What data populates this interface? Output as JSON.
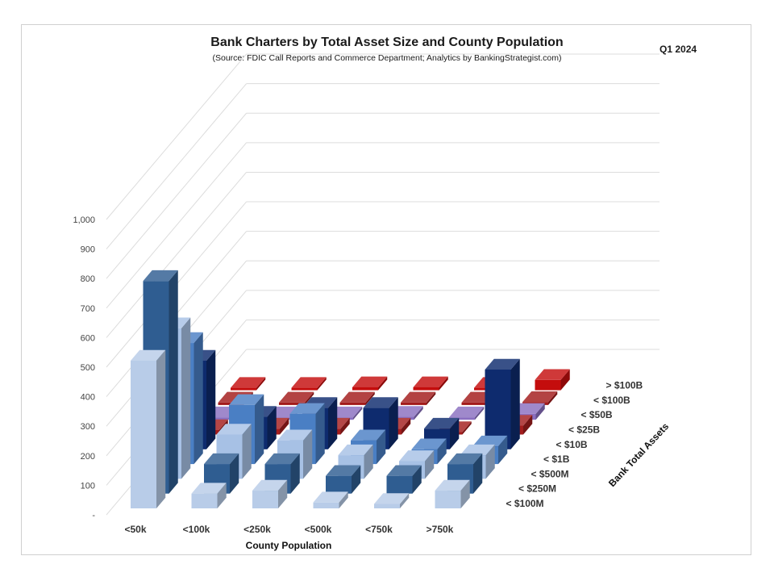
{
  "title": "Bank Charters by Total Asset Size and County Population",
  "subtitle": "(Source: FDIC Call Reports and Commerce Department; Analytics by BankingStrategist.com)",
  "period": "Q1  2024",
  "chart_data": {
    "type": "bar",
    "variant": "3d-column",
    "title": "Bank Charters by Total Asset Size and County Population",
    "xlabel": "County Population",
    "zlabel": "Bank Total Assets",
    "ylabel": "",
    "ylim": [
      0,
      1000
    ],
    "yticks": [
      "-",
      "100",
      "200",
      "300",
      "400",
      "500",
      "600",
      "700",
      "800",
      "900",
      "1,000"
    ],
    "grid": true,
    "categories": [
      "<50k",
      "<100k",
      "<250k",
      "<500k",
      "<750k",
      ">750k"
    ],
    "series": [
      {
        "name": "< $100M",
        "color": "#b8cce8",
        "values": [
          500,
          50,
          60,
          20,
          15,
          60
        ]
      },
      {
        "name": "< $250M",
        "color": "#2f5d91",
        "values": [
          720,
          100,
          100,
          60,
          60,
          100
        ]
      },
      {
        "name": "< $500M",
        "color": "#a7c1e5",
        "values": [
          510,
          150,
          130,
          80,
          60,
          80
        ]
      },
      {
        "name": "< $1B",
        "color": "#4a7fc4",
        "values": [
          410,
          200,
          170,
          80,
          50,
          60
        ]
      },
      {
        "name": "< $10B",
        "color": "#0e2b6e",
        "values": [
          300,
          110,
          140,
          140,
          70,
          270
        ]
      },
      {
        "name": "< $25B",
        "color": "#a31d1d",
        "values": [
          15,
          20,
          20,
          20,
          5,
          30
        ]
      },
      {
        "name": "< $50B",
        "color": "#8a6fc0",
        "values": [
          5,
          8,
          8,
          10,
          5,
          20
        ]
      },
      {
        "name": "< $100B",
        "color": "#a21a1a",
        "values": [
          3,
          3,
          5,
          5,
          3,
          10
        ]
      },
      {
        "name": "> $100B",
        "color": "#c40d0d",
        "values": [
          5,
          5,
          10,
          10,
          5,
          35
        ]
      }
    ]
  }
}
